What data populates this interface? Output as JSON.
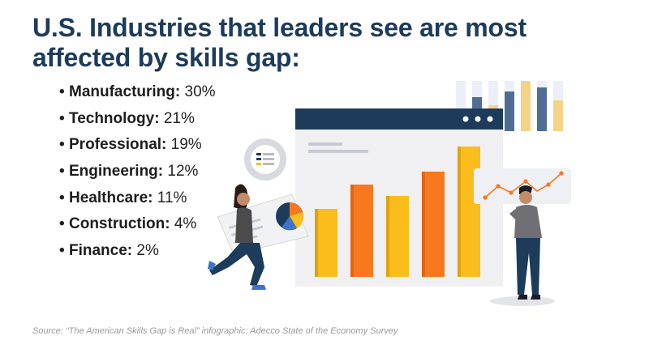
{
  "title": "U.S. Industries that leaders see are most affected by skills gap:",
  "industries": [
    {
      "name": "Manufacturing:",
      "value": "30%"
    },
    {
      "name": "Technology:",
      "value": "21%"
    },
    {
      "name": "Professional:",
      "value": "19%"
    },
    {
      "name": "Engineering:",
      "value": "12%"
    },
    {
      "name": "Healthcare:",
      "value": "11%"
    },
    {
      "name": "Construction:",
      "value": "4%"
    },
    {
      "name": "Finance:",
      "value": "2%"
    }
  ],
  "bullet": "•",
  "source": "Source: “The American Skills Gap is Real” infographic: Adecco State of the Economy Survey",
  "colors": {
    "title": "#1d3b5a",
    "navy": "#1d3b5a",
    "orange": "#f7781f",
    "yellow": "#fbbd1c",
    "window_bg": "#f0f0f2"
  }
}
